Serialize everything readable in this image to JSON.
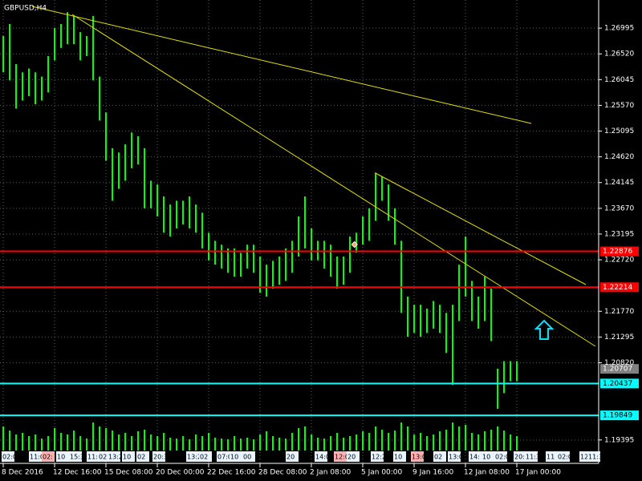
{
  "chart_data": {
    "type": "hilo",
    "title": "GBPUSD,H4",
    "color": "#00ff00",
    "ylim": [
      1.192,
      1.2747
    ],
    "yticks": [
      1.26995,
      {
        "value": 1.2652,
        "label": "1.26520"
      },
      1.26045,
      {
        "value": 1.2557,
        "label": "1.25570"
      },
      1.25095,
      {
        "value": 1.2462,
        "label": "1.24620"
      },
      1.24145,
      {
        "value": 1.2367,
        "label": "1.23670"
      },
      1.23195,
      {
        "value": 1.2272,
        "label": "1.22720"
      },
      {
        "value": 1.2177,
        "label": "1.21770"
      },
      1.21295,
      {
        "value": 1.2082,
        "label": "1.20820"
      },
      1.19395
    ],
    "xticks": [
      {
        "value": 0,
        "label": "8 Dec 2016"
      },
      {
        "value": 8,
        "label": "12 Dec 16:00"
      },
      {
        "value": 16,
        "label": "15 Dec 08:00"
      },
      {
        "value": 24,
        "label": "20 Dec 00:00"
      },
      {
        "value": 32,
        "label": "22 Dec 16:00"
      },
      {
        "value": 40,
        "label": "28 Dec 08:00"
      },
      {
        "value": 48,
        "label": "2 Jan 08:00"
      },
      {
        "value": 56,
        "label": "5 Jan 00:00"
      },
      {
        "value": 64,
        "label": "9 Jan 16:00"
      },
      {
        "value": 72,
        "label": "12 Jan 08:00"
      },
      {
        "value": 80,
        "label": "17 Jan 00:00"
      }
    ],
    "high": [
      1.2685,
      1.2707,
      1.2633,
      1.2618,
      1.2625,
      1.2618,
      1.261,
      1.2648,
      1.27,
      1.2707,
      1.2729,
      1.2722,
      1.2692,
      1.2685,
      1.2722,
      1.261,
      1.2544,
      1.2478,
      1.247,
      1.2485,
      1.2507,
      1.25,
      1.2478,
      1.2418,
      1.2411,
      1.2389,
      1.2374,
      1.2381,
      1.2381,
      1.2389,
      1.2374,
      1.2359,
      1.2322,
      1.2307,
      1.23,
      1.2293,
      1.2293,
      1.2285,
      1.23,
      1.23,
      1.2278,
      1.2263,
      1.227,
      1.2278,
      1.2293,
      1.2307,
      1.2352,
      1.2389,
      1.233,
      1.2307,
      1.2307,
      1.23,
      1.2278,
      1.2278,
      1.2315,
      1.2322,
      1.2352,
      1.2367,
      1.2433,
      1.2426,
      1.2411,
      1.2367,
      1.2307,
      1.2204,
      1.2189,
      1.2189,
      1.2182,
      1.2196,
      1.2189,
      1.2174,
      1.2189,
      1.2263,
      1.2315,
      1.2233,
      1.2204,
      1.2241,
      1.2219,
      1.2071,
      1.2085,
      1.2085,
      1.2085
    ],
    "low": [
      1.2618,
      1.2603,
      1.2551,
      1.2566,
      1.2574,
      1.2559,
      1.2566,
      1.2581,
      1.264,
      1.2663,
      1.267,
      1.267,
      1.264,
      1.2648,
      1.2603,
      1.2529,
      1.2455,
      1.2381,
      1.2403,
      1.2418,
      1.2441,
      1.2448,
      1.2367,
      1.2367,
      1.2352,
      1.2322,
      1.2315,
      1.233,
      1.2337,
      1.233,
      1.2322,
      1.2293,
      1.2271,
      1.2263,
      1.2256,
      1.2248,
      1.2241,
      1.2241,
      1.2256,
      1.2248,
      1.2211,
      1.2204,
      1.2219,
      1.2226,
      1.2233,
      1.2248,
      1.2278,
      1.2293,
      1.2271,
      1.2271,
      1.2256,
      1.2241,
      1.2219,
      1.2226,
      1.2248,
      1.2285,
      1.23,
      1.2307,
      1.2344,
      1.2381,
      1.2344,
      1.23,
      1.2174,
      1.213,
      1.2137,
      1.213,
      1.2137,
      1.2145,
      1.2137,
      1.21,
      1.2041,
      1.2159,
      1.2204,
      1.2159,
      1.2145,
      1.2159,
      1.2122,
      1.1997,
      1.2026,
      1.2048,
      1.2048
    ],
    "volumes": [
      30,
      25,
      20,
      22,
      18,
      20,
      15,
      18,
      28,
      22,
      20,
      25,
      18,
      15,
      35,
      30,
      28,
      25,
      20,
      22,
      18,
      24,
      26,
      20,
      18,
      22,
      16,
      15,
      18,
      14,
      20,
      18,
      22,
      16,
      15,
      14,
      18,
      15,
      16,
      14,
      20,
      24,
      18,
      16,
      15,
      22,
      28,
      30,
      20,
      16,
      15,
      18,
      22,
      16,
      18,
      20,
      24,
      22,
      30,
      26,
      22,
      25,
      35,
      30,
      20,
      22,
      18,
      20,
      24,
      26,
      35,
      30,
      32,
      22,
      20,
      24,
      26,
      30,
      25,
      20,
      18
    ],
    "levels": [
      {
        "value": 1.22876,
        "color": "#ff0000"
      },
      {
        "value": 1.22214,
        "color": "#ff0000"
      },
      {
        "value": 1.20437,
        "color": "#00ffff"
      },
      {
        "value": 1.19849,
        "color": "#00ffff"
      }
    ],
    "current_price": 1.20707,
    "time_labels": [
      "02:00",
      "11:0",
      "02:",
      "10",
      "15:3",
      "11:0",
      "02",
      "13:2",
      "10",
      "02",
      "20:30",
      "13:2",
      "02",
      "07:0",
      "10",
      "00",
      "20",
      "14:0",
      "12:00",
      "20",
      "12:20",
      "10",
      "13:01",
      "02",
      "13:0",
      "14:",
      "10",
      "02:0",
      "20:",
      "11:30",
      "11",
      "02:01",
      "12",
      "11:30"
    ]
  }
}
